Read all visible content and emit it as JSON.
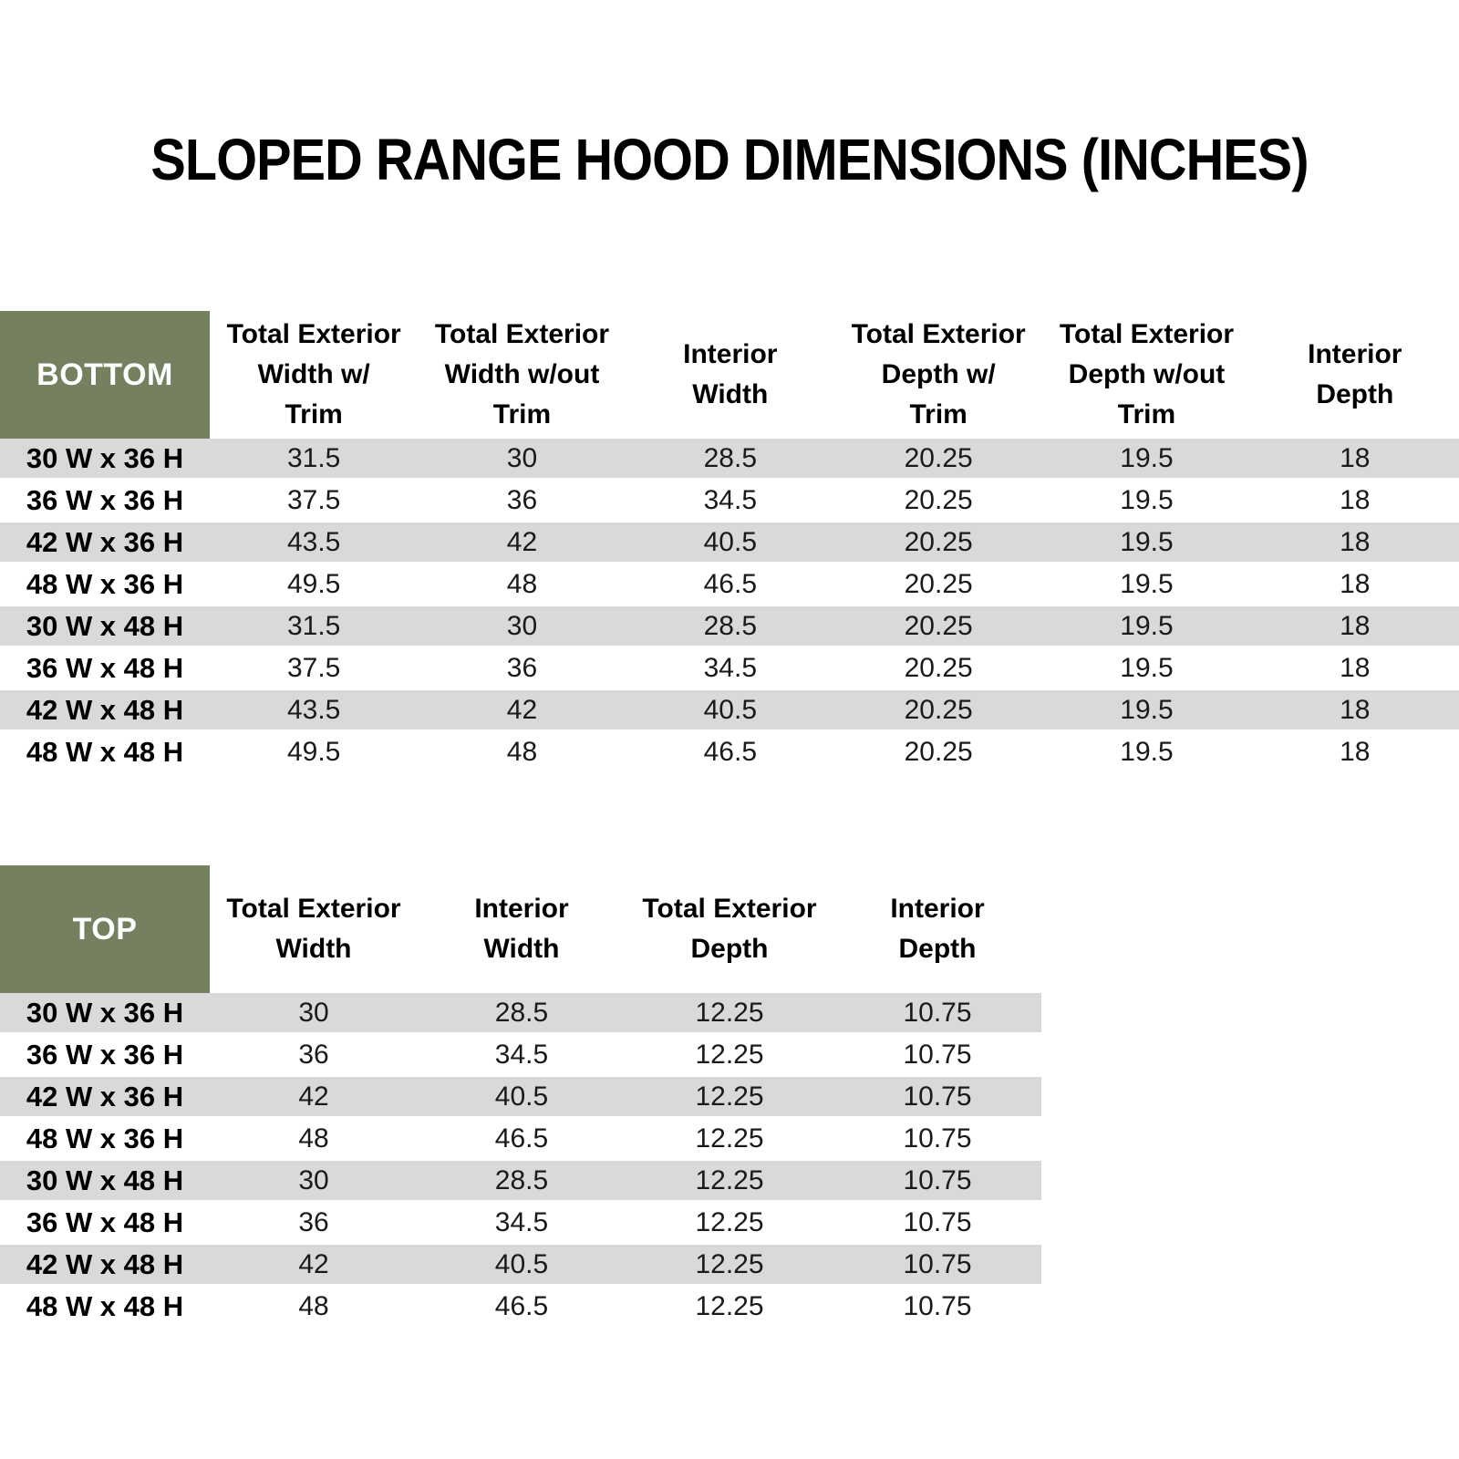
{
  "title": "SLOPED RANGE HOOD DIMENSIONS (INCHES)",
  "colors": {
    "header_green": "#75805F",
    "row_stripe_gray": "#D9D9D9",
    "row_white": "#FFFFFF",
    "text_black": "#000000",
    "header_text_white": "#FFFFFF"
  },
  "bottom_table": {
    "label": "BOTTOM",
    "columns": [
      "Total Exterior\nWidth w/\nTrim",
      "Total Exterior\nWidth w/out\nTrim",
      "Interior\nWidth",
      "Total Exterior\nDepth w/\nTrim",
      "Total Exterior\nDepth w/out\nTrim",
      "Interior\nDepth"
    ],
    "rows": [
      {
        "label": "30 W x 36 H",
        "values": [
          "31.5",
          "30",
          "28.5",
          "20.25",
          "19.5",
          "18"
        ]
      },
      {
        "label": "36 W x 36 H",
        "values": [
          "37.5",
          "36",
          "34.5",
          "20.25",
          "19.5",
          "18"
        ]
      },
      {
        "label": "42 W x 36 H",
        "values": [
          "43.5",
          "42",
          "40.5",
          "20.25",
          "19.5",
          "18"
        ]
      },
      {
        "label": "48 W x 36 H",
        "values": [
          "49.5",
          "48",
          "46.5",
          "20.25",
          "19.5",
          "18"
        ]
      },
      {
        "label": "30 W x 48 H",
        "values": [
          "31.5",
          "30",
          "28.5",
          "20.25",
          "19.5",
          "18"
        ]
      },
      {
        "label": "36 W x 48 H",
        "values": [
          "37.5",
          "36",
          "34.5",
          "20.25",
          "19.5",
          "18"
        ]
      },
      {
        "label": "42 W x 48 H",
        "values": [
          "43.5",
          "42",
          "40.5",
          "20.25",
          "19.5",
          "18"
        ]
      },
      {
        "label": "48 W x 48 H",
        "values": [
          "49.5",
          "48",
          "46.5",
          "20.25",
          "19.5",
          "18"
        ]
      }
    ]
  },
  "top_table": {
    "label": "TOP",
    "columns": [
      "Total Exterior\nWidth",
      "Interior\nWidth",
      "Total Exterior\nDepth",
      "Interior\nDepth"
    ],
    "rows": [
      {
        "label": "30 W x 36 H",
        "values": [
          "30",
          "28.5",
          "12.25",
          "10.75"
        ]
      },
      {
        "label": "36 W x 36 H",
        "values": [
          "36",
          "34.5",
          "12.25",
          "10.75"
        ]
      },
      {
        "label": "42 W x 36 H",
        "values": [
          "42",
          "40.5",
          "12.25",
          "10.75"
        ]
      },
      {
        "label": "48 W x 36 H",
        "values": [
          "48",
          "46.5",
          "12.25",
          "10.75"
        ]
      },
      {
        "label": "30 W x 48 H",
        "values": [
          "30",
          "28.5",
          "12.25",
          "10.75"
        ]
      },
      {
        "label": "36 W x 48 H",
        "values": [
          "36",
          "34.5",
          "12.25",
          "10.75"
        ]
      },
      {
        "label": "42 W x 48 H",
        "values": [
          "42",
          "40.5",
          "12.25",
          "10.75"
        ]
      },
      {
        "label": "48 W x 48 H",
        "values": [
          "48",
          "46.5",
          "12.25",
          "10.75"
        ]
      }
    ]
  },
  "chart_data": [
    {
      "type": "table",
      "title": "SLOPED RANGE HOOD DIMENSIONS (INCHES) — BOTTOM",
      "row_header": "BOTTOM",
      "columns": [
        "Total Exterior Width w/ Trim",
        "Total Exterior Width w/out Trim",
        "Interior Width",
        "Total Exterior Depth w/ Trim",
        "Total Exterior Depth w/out Trim",
        "Interior Depth"
      ],
      "categories": [
        "30 W x 36 H",
        "36 W x 36 H",
        "42 W x 36 H",
        "48 W x 36 H",
        "30 W x 48 H",
        "36 W x 48 H",
        "42 W x 48 H",
        "48 W x 48 H"
      ],
      "values": [
        [
          31.5,
          30,
          28.5,
          20.25,
          19.5,
          18
        ],
        [
          37.5,
          36,
          34.5,
          20.25,
          19.5,
          18
        ],
        [
          43.5,
          42,
          40.5,
          20.25,
          19.5,
          18
        ],
        [
          49.5,
          48,
          46.5,
          20.25,
          19.5,
          18
        ],
        [
          31.5,
          30,
          28.5,
          20.25,
          19.5,
          18
        ],
        [
          37.5,
          36,
          34.5,
          20.25,
          19.5,
          18
        ],
        [
          43.5,
          42,
          40.5,
          20.25,
          19.5,
          18
        ],
        [
          49.5,
          48,
          46.5,
          20.25,
          19.5,
          18
        ]
      ]
    },
    {
      "type": "table",
      "title": "SLOPED RANGE HOOD DIMENSIONS (INCHES) — TOP",
      "row_header": "TOP",
      "columns": [
        "Total Exterior Width",
        "Interior Width",
        "Total Exterior Depth",
        "Interior Depth"
      ],
      "categories": [
        "30 W x 36 H",
        "36 W x 36 H",
        "42 W x 36 H",
        "48 W x 36 H",
        "30 W x 48 H",
        "36 W x 48 H",
        "42 W x 48 H",
        "48 W x 48 H"
      ],
      "values": [
        [
          30,
          28.5,
          12.25,
          10.75
        ],
        [
          36,
          34.5,
          12.25,
          10.75
        ],
        [
          42,
          40.5,
          12.25,
          10.75
        ],
        [
          48,
          46.5,
          12.25,
          10.75
        ],
        [
          30,
          28.5,
          12.25,
          10.75
        ],
        [
          36,
          34.5,
          12.25,
          10.75
        ],
        [
          42,
          40.5,
          12.25,
          10.75
        ],
        [
          48,
          46.5,
          12.25,
          10.75
        ]
      ]
    }
  ]
}
